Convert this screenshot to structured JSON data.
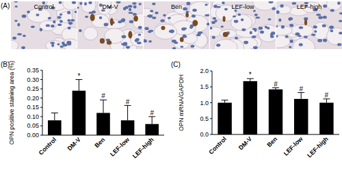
{
  "panel_a": {
    "label": "(A)",
    "images": [
      "Control",
      "DM-V",
      "Ben",
      "LEF-low",
      "LEF-high"
    ]
  },
  "chart_data": [
    {
      "type": "bar",
      "title": "(B)",
      "y_label": "OPN positive staining area (%)",
      "categories": [
        "Control",
        "DM-V",
        "Ben",
        "LEF-low",
        "LEF-high"
      ],
      "values": [
        0.08,
        0.24,
        0.12,
        0.08,
        0.06
      ],
      "errors": [
        0.04,
        0.06,
        0.07,
        0.08,
        0.04
      ],
      "color": "#000000",
      "ylim": [
        0,
        0.35
      ],
      "yticks": [
        {
          "value": 0,
          "label": "0.00"
        },
        {
          "value": 0.05,
          "label": "0.05"
        },
        {
          "value": 0.1,
          "label": "0.10"
        },
        {
          "value": 0.15,
          "label": "0.15"
        },
        {
          "value": 0.2,
          "label": "0.20"
        },
        {
          "value": 0.25,
          "label": "0.25"
        },
        {
          "value": 0.3,
          "label": "0.30"
        },
        {
          "value": 0.35,
          "label": "0.35"
        }
      ],
      "grid": false,
      "annotations": [
        {
          "x": "DM-V",
          "text": "*"
        },
        {
          "x": "Ben",
          "text": "#"
        },
        {
          "x": "LEF-low",
          "text": "#"
        },
        {
          "x": "LEF-high",
          "text": "#"
        }
      ]
    },
    {
      "type": "bar",
      "title": "(C)",
      "y_label": "OPN mRNA/GAPDH",
      "categories": [
        "Control",
        "DM-V",
        "Ben",
        "LEF-low",
        "LEF-high"
      ],
      "values": [
        1.0,
        1.68,
        1.42,
        1.12,
        1.0
      ],
      "errors": [
        0.08,
        0.08,
        0.05,
        0.2,
        0.12
      ],
      "color": "#000000",
      "ylim": [
        0,
        2
      ],
      "yticks": [
        {
          "value": 0,
          "label": "0.0"
        },
        {
          "value": 0.5,
          "label": "0.5"
        },
        {
          "value": 1,
          "label": "1.0"
        },
        {
          "value": 1.5,
          "label": "1.5"
        },
        {
          "value": 2,
          "label": "2.0"
        }
      ],
      "grid": false,
      "annotations": [
        {
          "x": "DM-V",
          "text": "*"
        },
        {
          "x": "Ben",
          "text": "#"
        },
        {
          "x": "LEF-low",
          "text": "#"
        },
        {
          "x": "LEF-high",
          "text": "#"
        }
      ]
    }
  ]
}
